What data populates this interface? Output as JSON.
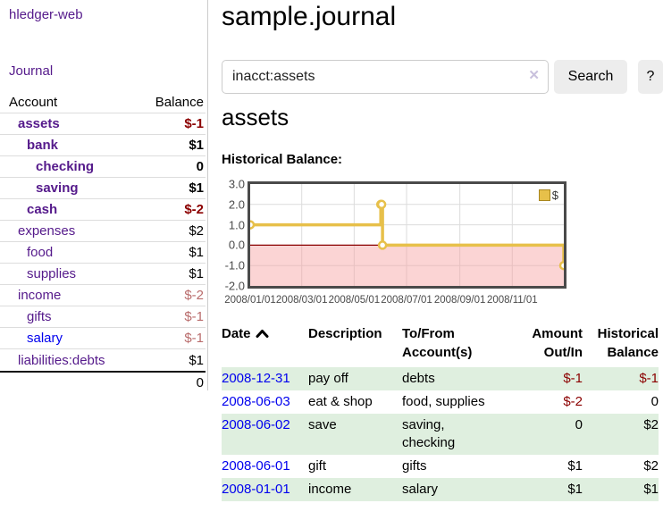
{
  "brand": "hledger-web",
  "nav": {
    "journal": "Journal"
  },
  "sidebar": {
    "header": {
      "account": "Account",
      "balance": "Balance"
    },
    "accounts": [
      {
        "name": "assets",
        "depth": 1,
        "bold": true,
        "link": "purple",
        "balance": "$-1",
        "balance_class": "neg-strong"
      },
      {
        "name": "bank",
        "depth": 2,
        "bold": true,
        "link": "purple",
        "balance": "$1",
        "balance_class": ""
      },
      {
        "name": "checking",
        "depth": 3,
        "bold": true,
        "link": "purple",
        "balance": "0",
        "balance_class": ""
      },
      {
        "name": "saving",
        "depth": 3,
        "bold": true,
        "link": "purple",
        "balance": "$1",
        "balance_class": ""
      },
      {
        "name": "cash",
        "depth": 2,
        "bold": true,
        "link": "purple",
        "balance": "$-2",
        "balance_class": "neg-strong"
      },
      {
        "name": "expenses",
        "depth": 1,
        "bold": false,
        "link": "purple",
        "balance": "$2",
        "balance_class": ""
      },
      {
        "name": "food",
        "depth": 2,
        "bold": false,
        "link": "purple",
        "balance": "$1",
        "balance_class": ""
      },
      {
        "name": "supplies",
        "depth": 2,
        "bold": false,
        "link": "purple",
        "balance": "$1",
        "balance_class": ""
      },
      {
        "name": "income",
        "depth": 1,
        "bold": false,
        "link": "purple",
        "balance": "$-2",
        "balance_class": "neg-soft"
      },
      {
        "name": "gifts",
        "depth": 2,
        "bold": false,
        "link": "purple",
        "balance": "$-1",
        "balance_class": "neg-soft"
      },
      {
        "name": "salary",
        "depth": 2,
        "bold": false,
        "link": "blue",
        "balance": "$-1",
        "balance_class": "neg-soft"
      },
      {
        "name": "liabilities:debts",
        "depth": 1,
        "bold": false,
        "link": "purple",
        "balance": "$1",
        "balance_class": ""
      }
    ],
    "total": "0"
  },
  "page": {
    "title": "sample.journal"
  },
  "search": {
    "value": "inacct:assets",
    "clear_icon": "✕",
    "search_button": "Search",
    "help_button": "?"
  },
  "account_view": {
    "title": "assets",
    "chart_heading": "Historical Balance:"
  },
  "chart_data": {
    "type": "line",
    "step": true,
    "title": "Historical Balance",
    "series": [
      {
        "name": "$",
        "points": [
          [
            "2008-01-01",
            1
          ],
          [
            "2008-06-01",
            2
          ],
          [
            "2008-06-02",
            2
          ],
          [
            "2008-06-03",
            0
          ],
          [
            "2008-12-31",
            -1
          ]
        ]
      }
    ],
    "x_range": [
      "2008-01-01",
      "2008-12-31"
    ],
    "ylim": [
      -2,
      3
    ],
    "yticks": [
      "3.0",
      "2.0",
      "1.0",
      "0.0",
      "-1.0",
      "-2.0"
    ],
    "xticks": [
      "2008/01/01",
      "2008/03/01",
      "2008/05/01",
      "2008/07/01",
      "2008/09/01",
      "2008/11/01"
    ],
    "legend": {
      "label": "$",
      "position": "top-right"
    },
    "grid": true,
    "line_color": "#e7c04a",
    "point_fill": "#ffffff",
    "grid_color": "#dcdcdc",
    "zero_line_color": "#8b0000",
    "negative_band_color": "#f7a0a0",
    "border_color": "#4a4a4a"
  },
  "register": {
    "columns": [
      {
        "lines": [
          "Date"
        ],
        "sort": "asc"
      },
      {
        "lines": [
          "Description"
        ]
      },
      {
        "lines": [
          "To/From",
          "Account(s)"
        ]
      },
      {
        "lines": [
          "Amount",
          "Out/In"
        ]
      },
      {
        "lines": [
          "Historical",
          "Balance"
        ]
      }
    ],
    "rows": [
      {
        "date": "2008-12-31",
        "description": "pay off",
        "accounts": "debts",
        "amount": "$-1",
        "amount_negative": true,
        "balance": "$-1",
        "balance_negative": true
      },
      {
        "date": "2008-06-03",
        "description": "eat & shop",
        "accounts": "food, supplies",
        "amount": "$-2",
        "amount_negative": true,
        "balance": "0",
        "balance_negative": false
      },
      {
        "date": "2008-06-02",
        "description": "save",
        "accounts": "saving,\nchecking",
        "amount": "0",
        "amount_negative": false,
        "balance": "$2",
        "balance_negative": false
      },
      {
        "date": "2008-06-01",
        "description": "gift",
        "accounts": "gifts",
        "amount": "$1",
        "amount_negative": false,
        "balance": "$2",
        "balance_negative": false
      },
      {
        "date": "2008-01-01",
        "description": "income",
        "accounts": "salary",
        "amount": "$1",
        "amount_negative": false,
        "balance": "$1",
        "balance_negative": false
      }
    ]
  }
}
